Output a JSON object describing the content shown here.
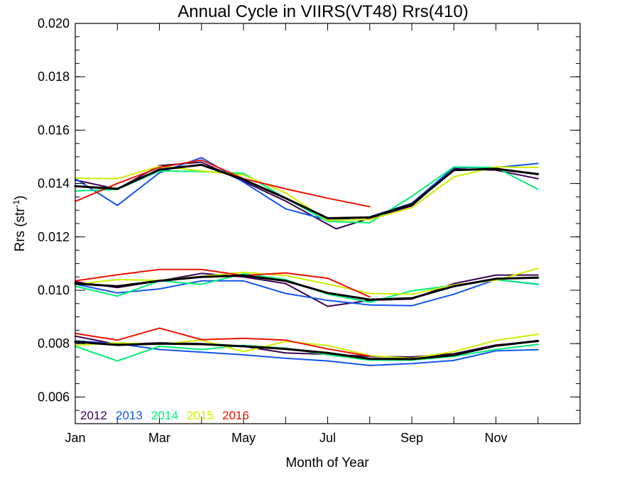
{
  "chart_data": {
    "type": "line",
    "title": "Annual Cycle in VIIRS(VT48) Rrs(410)",
    "xlabel": "Month of Year",
    "ylabel_main": "Rrs (str",
    "ylabel_sup": "-1",
    "ylabel_close": ")",
    "xlim": [
      1,
      13
    ],
    "ylim": [
      0.005,
      0.02
    ],
    "x_tick_labels": [
      {
        "x": 1,
        "label": "Jan"
      },
      {
        "x": 3,
        "label": "Mar"
      },
      {
        "x": 5,
        "label": "May"
      },
      {
        "x": 7,
        "label": "Jul"
      },
      {
        "x": 9,
        "label": "Sep"
      },
      {
        "x": 11,
        "label": "Nov"
      }
    ],
    "y_ticks": [
      {
        "y": 0.006,
        "label": "0.006"
      },
      {
        "y": 0.008,
        "label": "0.008"
      },
      {
        "y": 0.01,
        "label": "0.010"
      },
      {
        "y": 0.012,
        "label": "0.012"
      },
      {
        "y": 0.014,
        "label": "0.014"
      },
      {
        "y": 0.016,
        "label": "0.016"
      },
      {
        "y": 0.018,
        "label": "0.018"
      },
      {
        "y": 0.02,
        "label": "0.020"
      }
    ],
    "legend_position": "bottom-left",
    "series": [
      {
        "name": "2012",
        "color": "#3b0050",
        "width": 2,
        "groups": [
          [
            [
              1.0,
              0.01413
            ],
            [
              2.0,
              0.01379
            ],
            [
              3.0,
              0.01467
            ],
            [
              4.0,
              0.0148
            ],
            [
              5.0,
              0.01408
            ],
            [
              6.0,
              0.01334
            ],
            [
              7.2,
              0.0123
            ],
            [
              8.0,
              0.0127
            ],
            [
              9.0,
              0.01316
            ],
            [
              10.0,
              0.01455
            ],
            [
              11.0,
              0.0145
            ],
            [
              12.0,
              0.01418
            ]
          ],
          [
            [
              1.0,
              0.01032
            ],
            [
              2.0,
              0.0101
            ],
            [
              3.0,
              0.01035
            ],
            [
              4.0,
              0.01063
            ],
            [
              5.0,
              0.0105
            ],
            [
              6.0,
              0.01025
            ],
            [
              7.0,
              0.0094
            ],
            [
              8.0,
              0.00962
            ],
            [
              9.0,
              0.00967
            ],
            [
              10.0,
              0.01025
            ],
            [
              11.0,
              0.01057
            ],
            [
              12.0,
              0.01057
            ]
          ],
          [
            [
              1.0,
              0.00828
            ],
            [
              2.0,
              0.00797
            ],
            [
              3.0,
              0.00803
            ],
            [
              4.0,
              0.008
            ],
            [
              5.0,
              0.0079
            ],
            [
              6.0,
              0.00765
            ],
            [
              7.0,
              0.0076
            ],
            [
              8.0,
              0.00752
            ],
            [
              9.0,
              0.0075
            ],
            [
              10.0,
              0.00762
            ],
            [
              11.0,
              0.00795
            ],
            [
              12.0,
              0.00808
            ]
          ]
        ]
      },
      {
        "name": "2013",
        "color": "#1155ee",
        "width": 2,
        "groups": [
          [
            [
              1.0,
              0.01418
            ],
            [
              2.0,
              0.01318
            ],
            [
              3.0,
              0.0144
            ],
            [
              4.0,
              0.01497
            ],
            [
              5.0,
              0.01405
            ],
            [
              6.0,
              0.01305
            ],
            [
              7.0,
              0.01263
            ],
            [
              8.0,
              0.01275
            ],
            [
              9.0,
              0.01326
            ],
            [
              10.0,
              0.0146
            ],
            [
              11.0,
              0.0146
            ],
            [
              12.0,
              0.01475
            ]
          ],
          [
            [
              1.0,
              0.01023
            ],
            [
              2.0,
              0.0099
            ],
            [
              3.0,
              0.01005
            ],
            [
              4.0,
              0.01035
            ],
            [
              5.0,
              0.01035
            ],
            [
              6.0,
              0.00988
            ],
            [
              7.0,
              0.00962
            ],
            [
              8.0,
              0.00945
            ],
            [
              9.0,
              0.00942
            ],
            [
              10.0,
              0.00985
            ],
            [
              11.0,
              0.0104
            ],
            [
              12.0,
              0.01022
            ]
          ],
          [
            [
              1.0,
              0.0081
            ],
            [
              2.0,
              0.008
            ],
            [
              3.0,
              0.00778
            ],
            [
              4.0,
              0.00768
            ],
            [
              5.0,
              0.00758
            ],
            [
              6.0,
              0.00745
            ],
            [
              7.0,
              0.00735
            ],
            [
              8.0,
              0.00718
            ],
            [
              9.0,
              0.00725
            ],
            [
              10.0,
              0.00737
            ],
            [
              11.0,
              0.00773
            ],
            [
              12.0,
              0.00777
            ]
          ]
        ]
      },
      {
        "name": "2014",
        "color": "#00ee77",
        "width": 2,
        "groups": [
          [
            [
              1.0,
              0.01372
            ],
            [
              2.0,
              0.01378
            ],
            [
              3.0,
              0.01447
            ],
            [
              4.0,
              0.01445
            ],
            [
              5.0,
              0.01438
            ],
            [
              6.0,
              0.01345
            ],
            [
              7.0,
              0.01258
            ],
            [
              8.0,
              0.01253
            ],
            [
              9.0,
              0.01352
            ],
            [
              10.0,
              0.01462
            ],
            [
              11.0,
              0.0146
            ],
            [
              12.0,
              0.01378
            ]
          ],
          [
            [
              1.0,
              0.01015
            ],
            [
              2.0,
              0.00978
            ],
            [
              3.0,
              0.01035
            ],
            [
              4.0,
              0.01022
            ],
            [
              5.0,
              0.01062
            ],
            [
              6.0,
              0.0104
            ],
            [
              7.0,
              0.00985
            ],
            [
              8.0,
              0.00955
            ],
            [
              9.0,
              0.00998
            ],
            [
              10.0,
              0.01018
            ],
            [
              11.0,
              0.0104
            ],
            [
              12.0,
              0.01023
            ]
          ],
          [
            [
              1.0,
              0.0079
            ],
            [
              2.0,
              0.00735
            ],
            [
              3.0,
              0.0079
            ],
            [
              4.0,
              0.00778
            ],
            [
              5.0,
              0.00793
            ],
            [
              6.0,
              0.00783
            ],
            [
              7.0,
              0.00758
            ],
            [
              8.0,
              0.00738
            ],
            [
              9.0,
              0.00738
            ],
            [
              10.0,
              0.00752
            ],
            [
              11.0,
              0.00778
            ],
            [
              12.0,
              0.00797
            ]
          ]
        ]
      },
      {
        "name": "2015",
        "color": "#ccee00",
        "width": 2,
        "groups": [
          [
            [
              1.0,
              0.0142
            ],
            [
              2.0,
              0.01418
            ],
            [
              3.0,
              0.01465
            ],
            [
              4.0,
              0.01447
            ],
            [
              5.0,
              0.01432
            ],
            [
              6.0,
              0.01365
            ],
            [
              7.0,
              0.01262
            ],
            [
              8.0,
              0.01265
            ],
            [
              9.0,
              0.0131
            ],
            [
              10.0,
              0.01425
            ],
            [
              11.0,
              0.01462
            ],
            [
              12.0,
              0.0146
            ]
          ],
          [
            [
              1.0,
              0.01022
            ],
            [
              2.0,
              0.0104
            ],
            [
              3.0,
              0.01037
            ],
            [
              4.0,
              0.01052
            ],
            [
              5.0,
              0.01067
            ],
            [
              6.0,
              0.01055
            ],
            [
              7.0,
              0.01023
            ],
            [
              8.0,
              0.00988
            ],
            [
              9.0,
              0.00985
            ],
            [
              10.0,
              0.0102
            ],
            [
              11.0,
              0.01037
            ],
            [
              12.0,
              0.01082
            ]
          ],
          [
            [
              1.0,
              0.00793
            ],
            [
              2.0,
              0.00803
            ],
            [
              3.0,
              0.00798
            ],
            [
              4.0,
              0.00813
            ],
            [
              5.0,
              0.0077
            ],
            [
              6.0,
              0.00808
            ],
            [
              7.0,
              0.00793
            ],
            [
              8.0,
              0.00755
            ],
            [
              9.0,
              0.00745
            ],
            [
              10.0,
              0.0077
            ],
            [
              11.0,
              0.00812
            ],
            [
              12.0,
              0.00835
            ]
          ]
        ]
      },
      {
        "name": "2016",
        "color": "#ee1100",
        "width": 2,
        "groups": [
          [
            [
              1.0,
              0.01333
            ],
            [
              2.0,
              0.014
            ],
            [
              3.0,
              0.0146
            ],
            [
              4.0,
              0.01488
            ],
            [
              5.0,
              0.01418
            ],
            [
              6.0,
              0.0138
            ],
            [
              7.0,
              0.01345
            ],
            [
              8.0,
              0.01313
            ]
          ],
          [
            [
              1.0,
              0.01035
            ],
            [
              2.0,
              0.01058
            ],
            [
              3.0,
              0.01078
            ],
            [
              4.0,
              0.01078
            ],
            [
              5.0,
              0.01055
            ],
            [
              6.0,
              0.01065
            ],
            [
              7.0,
              0.01045
            ],
            [
              8.0,
              0.00975
            ]
          ],
          [
            [
              1.0,
              0.00838
            ],
            [
              2.0,
              0.00813
            ],
            [
              3.0,
              0.00858
            ],
            [
              4.0,
              0.00815
            ],
            [
              5.0,
              0.0082
            ],
            [
              6.0,
              0.00813
            ],
            [
              7.0,
              0.0078
            ],
            [
              8.0,
              0.00753
            ]
          ]
        ]
      },
      {
        "name": "",
        "color": "#000000",
        "width": 3,
        "groups": [
          [
            [
              1.0,
              0.0139
            ],
            [
              2.0,
              0.0138
            ],
            [
              3.0,
              0.01452
            ],
            [
              4.0,
              0.0147
            ],
            [
              5.0,
              0.01415
            ],
            [
              6.0,
              0.01345
            ],
            [
              7.0,
              0.0127
            ],
            [
              8.0,
              0.01273
            ],
            [
              9.0,
              0.01322
            ],
            [
              10.0,
              0.0145
            ],
            [
              11.0,
              0.01455
            ],
            [
              12.0,
              0.01435
            ]
          ],
          [
            [
              1.0,
              0.01025
            ],
            [
              2.0,
              0.01015
            ],
            [
              3.0,
              0.01035
            ],
            [
              4.0,
              0.0105
            ],
            [
              5.0,
              0.01055
            ],
            [
              6.0,
              0.01035
            ],
            [
              7.0,
              0.0099
            ],
            [
              8.0,
              0.00965
            ],
            [
              9.0,
              0.0097
            ],
            [
              10.0,
              0.01015
            ],
            [
              11.0,
              0.01043
            ],
            [
              12.0,
              0.01047
            ]
          ],
          [
            [
              1.0,
              0.00807
            ],
            [
              2.0,
              0.00795
            ],
            [
              3.0,
              0.008
            ],
            [
              4.0,
              0.00798
            ],
            [
              5.0,
              0.0079
            ],
            [
              6.0,
              0.0078
            ],
            [
              7.0,
              0.00765
            ],
            [
              8.0,
              0.00743
            ],
            [
              9.0,
              0.00742
            ],
            [
              10.0,
              0.00757
            ],
            [
              11.0,
              0.00792
            ],
            [
              12.0,
              0.0081
            ]
          ]
        ]
      }
    ]
  }
}
